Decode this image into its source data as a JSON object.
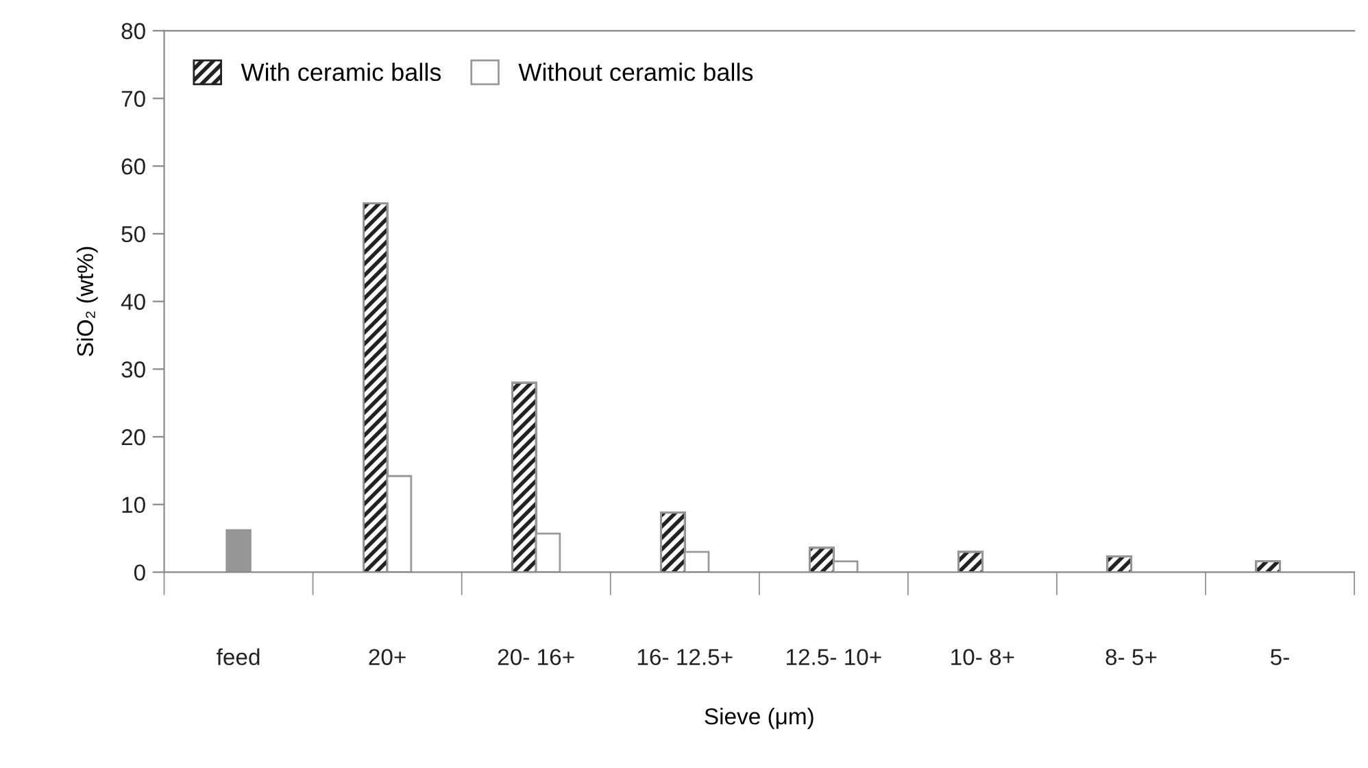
{
  "chart_data": {
    "type": "bar",
    "xlabel": "Sieve (μm)",
    "ylabel": "SiO₂ (wt%)",
    "categories": [
      "feed",
      "20+",
      "20- 16+",
      "16- 12.5+",
      "12.5- 10+",
      "10- 8+",
      "8- 5+",
      "5-"
    ],
    "series": [
      {
        "color": "#969696",
        "values": [
          6.2,
          null,
          null,
          null,
          null,
          null,
          null,
          null
        ]
      },
      {
        "name": "With ceramic balls",
        "color": "#222222",
        "values": [
          null,
          54.5,
          28,
          8.8,
          3.6,
          3.0,
          2.3,
          1.6
        ]
      },
      {
        "name": "Without ceramic balls",
        "color": "#ffffff",
        "values": [
          null,
          14.2,
          5.7,
          3.0,
          1.6,
          null,
          null,
          null
        ]
      }
    ],
    "ylim": [
      0,
      80
    ],
    "yticks": [
      0,
      10,
      20,
      30,
      40,
      50,
      60,
      70,
      80
    ],
    "grid": false,
    "legend": "top left"
  }
}
